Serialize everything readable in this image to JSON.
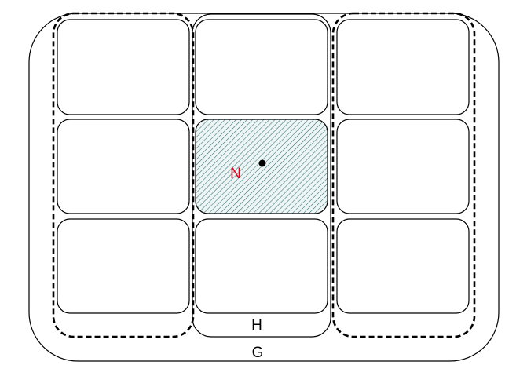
{
  "diagram": {
    "outer_label": "G",
    "middle_column_label": "H",
    "highlighted_cell_label": "N"
  },
  "colors": {
    "stroke": "#000000",
    "hatch": "#2f6f74",
    "hatch_background": "#eef5f5",
    "highlight_label": "#e0001b",
    "point": "#000000"
  }
}
